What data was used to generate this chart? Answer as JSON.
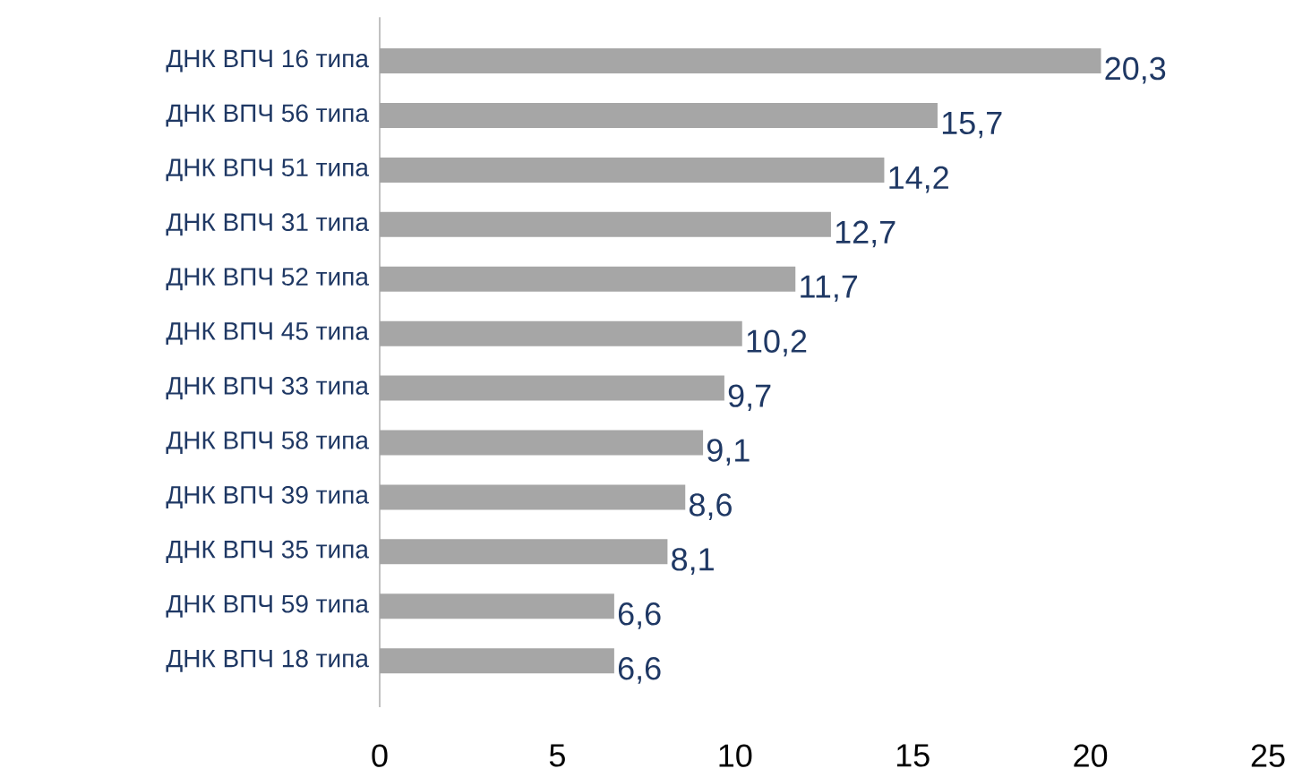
{
  "chart_data": {
    "type": "bar",
    "orientation": "horizontal",
    "categories": [
      "ДНК ВПЧ 16 типа",
      "ДНК ВПЧ 56 типа",
      "ДНК ВПЧ 51 типа",
      "ДНК ВПЧ 31 типа",
      "ДНК ВПЧ 52 типа",
      "ДНК ВПЧ 45 типа",
      "ДНК ВПЧ 33 типа",
      "ДНК ВПЧ 58 типа",
      "ДНК ВПЧ 39 типа",
      "ДНК ВПЧ 35 типа",
      "ДНК ВПЧ 59 типа",
      "ДНК ВПЧ 18 типа"
    ],
    "values": [
      20.3,
      15.7,
      14.2,
      12.7,
      11.7,
      10.2,
      9.7,
      9.1,
      8.6,
      8.1,
      6.6,
      6.6
    ],
    "value_labels": [
      "20,3",
      "15,7",
      "14,2",
      "12,7",
      "11,7",
      "10,2",
      "9,7",
      "9,1",
      "8,6",
      "8,1",
      "6,6",
      "6,6"
    ],
    "color": "#a6a6a6",
    "xlim": [
      0,
      25
    ],
    "xticks": [
      0,
      5,
      10,
      15,
      20,
      25
    ]
  }
}
